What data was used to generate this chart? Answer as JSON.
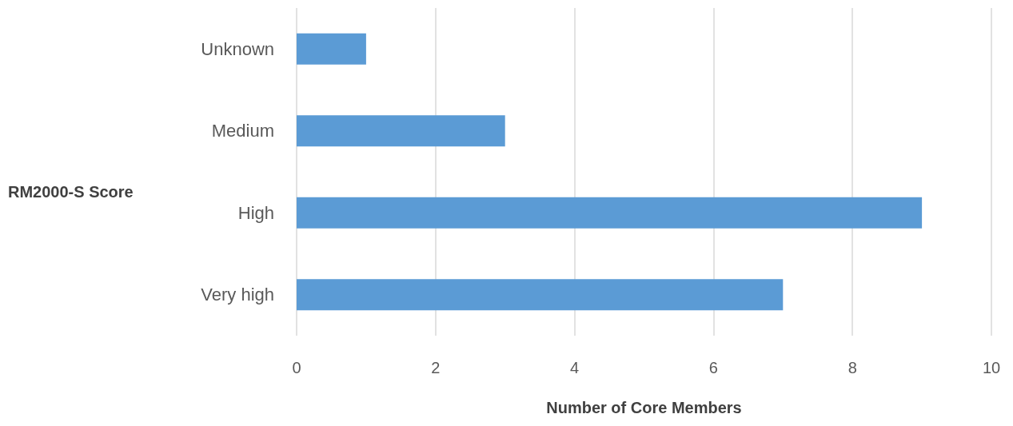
{
  "chart_data": {
    "type": "bar",
    "orientation": "horizontal",
    "categories": [
      "Unknown",
      "Medium",
      "High",
      "Very high"
    ],
    "values": [
      1,
      3,
      9,
      7
    ],
    "color": "#5b9bd5",
    "xlabel": "Number of Core Members",
    "ylabel": "RM2000-S Score",
    "xlim": [
      0,
      10
    ],
    "xticks": [
      0,
      2,
      4,
      6,
      8,
      10
    ],
    "grid": "x"
  }
}
